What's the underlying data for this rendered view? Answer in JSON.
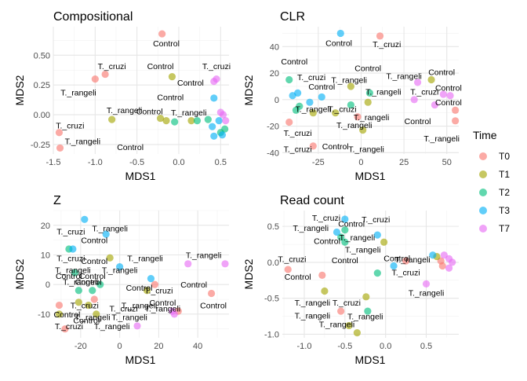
{
  "legend": {
    "title": "Time",
    "items": [
      {
        "label": "T0",
        "color": "#F8766D"
      },
      {
        "label": "T1",
        "color": "#A3A500"
      },
      {
        "label": "T2",
        "color": "#00BF7D"
      },
      {
        "label": "T3",
        "color": "#00B0F6"
      },
      {
        "label": "T7",
        "color": "#E76BF3"
      }
    ]
  },
  "chart_data": [
    {
      "type": "scatter",
      "title": "Compositional",
      "xlabel": "MDS1",
      "ylabel": "MDS2",
      "xlim": [
        -1.5,
        0.6
      ],
      "ylim": [
        -0.33,
        0.74
      ],
      "xticks": [
        -1.5,
        -1.0,
        -0.5,
        0.0,
        0.5
      ],
      "xticklabels": [
        "-1.5",
        "-1.0",
        "-0.5",
        "0.0",
        "0.5"
      ],
      "yticks": [
        -0.25,
        0,
        0.25,
        0.5
      ],
      "yticklabels": [
        "-0.25",
        "0.00",
        "0.25",
        "0.50"
      ],
      "points": [
        {
          "x": -0.2,
          "y": 0.68,
          "t": "T0"
        },
        {
          "x": -1.0,
          "y": 0.3,
          "t": "T0"
        },
        {
          "x": -0.88,
          "y": 0.34,
          "t": "T0"
        },
        {
          "x": -1.43,
          "y": -0.15,
          "t": "T0"
        },
        {
          "x": -1.42,
          "y": -0.28,
          "t": "T0"
        },
        {
          "x": -0.08,
          "y": 0.32,
          "t": "T1"
        },
        {
          "x": -0.8,
          "y": -0.04,
          "t": "T1"
        },
        {
          "x": -0.22,
          "y": -0.03,
          "t": "T1"
        },
        {
          "x": -0.15,
          "y": -0.05,
          "t": "T1"
        },
        {
          "x": 0.15,
          "y": -0.05,
          "t": "T1"
        },
        {
          "x": -0.05,
          "y": -0.06,
          "t": "T2"
        },
        {
          "x": 0.22,
          "y": -0.05,
          "t": "T2"
        },
        {
          "x": 0.35,
          "y": -0.04,
          "t": "T2"
        },
        {
          "x": 0.5,
          "y": -0.15,
          "t": "T2"
        },
        {
          "x": 0.55,
          "y": -0.12,
          "t": "T2"
        },
        {
          "x": 0.42,
          "y": 0.14,
          "t": "T3"
        },
        {
          "x": 0.4,
          "y": -0.1,
          "t": "T3"
        },
        {
          "x": 0.48,
          "y": -0.05,
          "t": "T3"
        },
        {
          "x": 0.52,
          "y": -0.17,
          "t": "T3"
        },
        {
          "x": 0.42,
          "y": -0.18,
          "t": "T3"
        },
        {
          "x": 0.42,
          "y": 0.28,
          "t": "T7"
        },
        {
          "x": 0.45,
          "y": 0.3,
          "t": "T7"
        },
        {
          "x": 0.53,
          "y": 0.0,
          "t": "T7"
        },
        {
          "x": 0.56,
          "y": -0.05,
          "t": "T7"
        },
        {
          "x": 0.5,
          "y": 0.02,
          "t": "T7"
        }
      ],
      "annotations": [
        {
          "text": "Control",
          "x": -0.15,
          "y": 0.6
        },
        {
          "text": "T._cruzi",
          "x": -0.8,
          "y": 0.41
        },
        {
          "text": "Control",
          "x": -0.22,
          "y": 0.41
        },
        {
          "text": "T._cruzi",
          "x": 0.45,
          "y": 0.41
        },
        {
          "text": "T._rangeli",
          "x": -1.2,
          "y": 0.19
        },
        {
          "text": "Control",
          "x": 0.14,
          "y": 0.27
        },
        {
          "text": "Control",
          "x": -0.1,
          "y": 0.15
        },
        {
          "text": "T._rangeli",
          "x": -0.65,
          "y": 0.04
        },
        {
          "text": "Control",
          "x": -0.35,
          "y": 0.03
        },
        {
          "text": "T._rangeli",
          "x": 0.12,
          "y": 0.02
        },
        {
          "text": "T._cruzi",
          "x": -1.3,
          "y": -0.09
        },
        {
          "text": "T._rangeli",
          "x": -1.15,
          "y": -0.22
        },
        {
          "text": "Control",
          "x": -0.58,
          "y": -0.27
        }
      ]
    },
    {
      "type": "scatter",
      "title": "CLR",
      "xlabel": "MDS1",
      "ylabel": "MDS2",
      "xlim": [
        -46,
        57
      ],
      "ylim": [
        -41,
        55
      ],
      "xticks": [
        -25,
        0,
        25,
        50
      ],
      "xticklabels": [
        "-25",
        "0",
        "25",
        "50"
      ],
      "yticks": [
        -40,
        -20,
        0,
        20,
        40
      ],
      "yticklabels": [
        "-40",
        "-20",
        "0",
        "20",
        "40"
      ],
      "points": [
        {
          "x": -28,
          "y": -35,
          "t": "T0"
        },
        {
          "x": -42,
          "y": -17,
          "t": "T0"
        },
        {
          "x": -2,
          "y": -13,
          "t": "T0"
        },
        {
          "x": 11,
          "y": 48,
          "t": "T0"
        },
        {
          "x": 55,
          "y": -8,
          "t": "T0"
        },
        {
          "x": 55,
          "y": -16,
          "t": "T0"
        },
        {
          "x": -28,
          "y": -10,
          "t": "T1"
        },
        {
          "x": -6,
          "y": 10,
          "t": "T1"
        },
        {
          "x": -15,
          "y": -10,
          "t": "T1"
        },
        {
          "x": 1,
          "y": -23,
          "t": "T1"
        },
        {
          "x": 41,
          "y": 15,
          "t": "T1"
        },
        {
          "x": 4,
          "y": -2,
          "t": "T1"
        },
        {
          "x": -42,
          "y": 15,
          "t": "T2"
        },
        {
          "x": -38,
          "y": -8,
          "t": "T2"
        },
        {
          "x": -36,
          "y": -5,
          "t": "T2"
        },
        {
          "x": -6,
          "y": -4,
          "t": "T2"
        },
        {
          "x": 5,
          "y": 5,
          "t": "T2"
        },
        {
          "x": -40,
          "y": 3,
          "t": "T3"
        },
        {
          "x": -37,
          "y": 5,
          "t": "T3"
        },
        {
          "x": -12,
          "y": 50,
          "t": "T3"
        },
        {
          "x": -23,
          "y": 2,
          "t": "T3"
        },
        {
          "x": -30,
          "y": -2,
          "t": "T3"
        },
        {
          "x": 33,
          "y": 13,
          "t": "T7"
        },
        {
          "x": 31,
          "y": 0,
          "t": "T7"
        },
        {
          "x": 48,
          "y": 4,
          "t": "T7"
        },
        {
          "x": 52,
          "y": 3,
          "t": "T7"
        },
        {
          "x": 43,
          "y": -4,
          "t": "T7"
        }
      ],
      "annotations": [
        {
          "text": "Control",
          "x": -13,
          "y": 43
        },
        {
          "text": "T._cruzi",
          "x": 15,
          "y": 42
        },
        {
          "text": "Control",
          "x": -39,
          "y": 29
        },
        {
          "text": "T._cruzi",
          "x": -29,
          "y": 17
        },
        {
          "text": "Control",
          "x": 4,
          "y": 24
        },
        {
          "text": "Control",
          "x": 47,
          "y": 21
        },
        {
          "text": "T._rangeli",
          "x": 25,
          "y": 18
        },
        {
          "text": "T._rangeli",
          "x": -7,
          "y": 15
        },
        {
          "text": "Control",
          "x": -23,
          "y": 10
        },
        {
          "text": "T._rangeli",
          "x": 13,
          "y": 6
        },
        {
          "text": "T._cruzi",
          "x": 37,
          "y": 6
        },
        {
          "text": "Control",
          "x": 51,
          "y": 9
        },
        {
          "text": "T._cruzi",
          "x": -11,
          "y": -7
        },
        {
          "text": "T._rangeli",
          "x": -28,
          "y": -7
        },
        {
          "text": "Control",
          "x": 51,
          "y": -2
        },
        {
          "text": "T._rangeli",
          "x": 6,
          "y": -13
        },
        {
          "text": "Control",
          "x": 33,
          "y": -16
        },
        {
          "text": "T._cruzi",
          "x": -37,
          "y": -25
        },
        {
          "text": "T._rangeli",
          "x": -4,
          "y": -19
        },
        {
          "text": "T._rangeli",
          "x": 47,
          "y": -29
        },
        {
          "text": "T._cruzi",
          "x": -37,
          "y": -37
        },
        {
          "text": "Control",
          "x": -15,
          "y": -35
        },
        {
          "text": "T._rangeli",
          "x": 3,
          "y": -37
        }
      ]
    },
    {
      "type": "scatter",
      "title": "Z",
      "xlabel": "MDS1",
      "ylabel": "MDS2",
      "xlim": [
        -34,
        56
      ],
      "ylim": [
        -18,
        25
      ],
      "xticks": [
        -20,
        0,
        20,
        40
      ],
      "xticklabels": [
        "-20",
        "0",
        "20",
        "40"
      ],
      "yticks": [
        -10,
        0,
        10,
        20
      ],
      "yticklabels": [
        "-10",
        "0",
        "10",
        "20"
      ],
      "points": [
        {
          "x": -31,
          "y": -7,
          "t": "T0"
        },
        {
          "x": -28,
          "y": -15,
          "t": "T0"
        },
        {
          "x": -13,
          "y": -5,
          "t": "T0"
        },
        {
          "x": 18,
          "y": 0,
          "t": "T0"
        },
        {
          "x": 47,
          "y": -3,
          "t": "T0"
        },
        {
          "x": 30,
          "y": -9,
          "t": "T0"
        },
        {
          "x": -31,
          "y": -10,
          "t": "T1"
        },
        {
          "x": -21,
          "y": -6,
          "t": "T1"
        },
        {
          "x": -16,
          "y": -7,
          "t": "T1"
        },
        {
          "x": -12,
          "y": -10,
          "t": "T1"
        },
        {
          "x": -5,
          "y": 9,
          "t": "T1"
        },
        {
          "x": 14,
          "y": -2,
          "t": "T1"
        },
        {
          "x": -26,
          "y": 12,
          "t": "T2"
        },
        {
          "x": -23,
          "y": 4,
          "t": "T2"
        },
        {
          "x": -21,
          "y": -2,
          "t": "T2"
        },
        {
          "x": -14,
          "y": -2,
          "t": "T2"
        },
        {
          "x": -10,
          "y": 0,
          "t": "T2"
        },
        {
          "x": -18,
          "y": 22,
          "t": "T3"
        },
        {
          "x": -24,
          "y": 12,
          "t": "T3"
        },
        {
          "x": -7,
          "y": 17,
          "t": "T3"
        },
        {
          "x": 0,
          "y": 6,
          "t": "T3"
        },
        {
          "x": 16,
          "y": 2,
          "t": "T3"
        },
        {
          "x": 35,
          "y": 7,
          "t": "T7"
        },
        {
          "x": 54,
          "y": 7,
          "t": "T7"
        },
        {
          "x": 9,
          "y": -14,
          "t": "T7"
        },
        {
          "x": 27,
          "y": -9,
          "t": "T7"
        },
        {
          "x": 28,
          "y": -10,
          "t": "T7"
        }
      ],
      "annotations": [
        {
          "text": "T._rangeli",
          "x": -5,
          "y": 19
        },
        {
          "text": "T._cruzi",
          "x": -25,
          "y": 18
        },
        {
          "text": "Control",
          "x": -13,
          "y": 15
        },
        {
          "text": "T._cruzi",
          "x": -25,
          "y": 9
        },
        {
          "text": "Control",
          "x": -13,
          "y": 8
        },
        {
          "text": "T._rangeli",
          "x": 13,
          "y": 9
        },
        {
          "text": "T._rangeli",
          "x": 43,
          "y": 10
        },
        {
          "text": "T._rangeli",
          "x": -24,
          "y": 5
        },
        {
          "text": "Control",
          "x": -26,
          "y": 3
        },
        {
          "text": "Control",
          "x": -14,
          "y": 3
        },
        {
          "text": "T._rangeli",
          "x": 0,
          "y": 5
        },
        {
          "text": "T._rangeli",
          "x": -20,
          "y": 1
        },
        {
          "text": "Control",
          "x": -16,
          "y": 1
        },
        {
          "text": "Control",
          "x": 10,
          "y": -1
        },
        {
          "text": "T._cruzi",
          "x": 20,
          "y": -2
        },
        {
          "text": "Control",
          "x": 38,
          "y": 0
        },
        {
          "text": "Control",
          "x": 22,
          "y": -6
        },
        {
          "text": "T._rangeli",
          "x": 10,
          "y": -7
        },
        {
          "text": "T._cruzi",
          "x": -18,
          "y": -7
        },
        {
          "text": "Control",
          "x": 48,
          "y": -7
        },
        {
          "text": "T._cruzi",
          "x": 2,
          "y": -8
        },
        {
          "text": "T._rangeli",
          "x": 22,
          "y": -8
        },
        {
          "text": "Control",
          "x": -27,
          "y": -10
        },
        {
          "text": "T._rangeli",
          "x": -14,
          "y": -11
        },
        {
          "text": "Control",
          "x": -17,
          "y": -12
        },
        {
          "text": "T._rangeli",
          "x": 5,
          "y": -11
        },
        {
          "text": "T._cruzi",
          "x": -26,
          "y": -14
        },
        {
          "text": "T._rangeli",
          "x": -4,
          "y": -14
        }
      ]
    },
    {
      "type": "scatter",
      "title": "Read count",
      "xlabel": "MDS1",
      "ylabel": "MDS2",
      "xlim": [
        -1.27,
        0.9
      ],
      "ylim": [
        -1.05,
        0.72
      ],
      "xticks": [
        -1.0,
        -0.5,
        0.0,
        0.5
      ],
      "xticklabels": [
        "-1.0",
        "-0.5",
        "0.0",
        "0.5"
      ],
      "yticks": [
        -1.0,
        -0.5,
        0.0,
        0.5
      ],
      "yticklabels": [
        "-1.0",
        "-0.5",
        "0.0",
        "0.5"
      ],
      "points": [
        {
          "x": -1.2,
          "y": -0.1,
          "t": "T0"
        },
        {
          "x": -0.78,
          "y": -0.18,
          "t": "T0"
        },
        {
          "x": -0.55,
          "y": -0.68,
          "t": "T0"
        },
        {
          "x": 0.25,
          "y": 0.02,
          "t": "T0"
        },
        {
          "x": 0.68,
          "y": 0.02,
          "t": "T0"
        },
        {
          "x": 0.7,
          "y": -0.05,
          "t": "T0"
        },
        {
          "x": -0.45,
          "y": -0.88,
          "t": "T1"
        },
        {
          "x": -0.35,
          "y": -0.98,
          "t": "T1"
        },
        {
          "x": -0.24,
          "y": -0.48,
          "t": "T1"
        },
        {
          "x": -0.75,
          "y": -0.4,
          "t": "T1"
        },
        {
          "x": -0.02,
          "y": 0.28,
          "t": "T1"
        },
        {
          "x": 0.63,
          "y": 0.08,
          "t": "T1"
        },
        {
          "x": -0.55,
          "y": 0.35,
          "t": "T2"
        },
        {
          "x": -0.5,
          "y": 0.28,
          "t": "T2"
        },
        {
          "x": -0.5,
          "y": 0.45,
          "t": "T2"
        },
        {
          "x": -0.22,
          "y": -0.68,
          "t": "T2"
        },
        {
          "x": -0.1,
          "y": -0.15,
          "t": "T2"
        },
        {
          "x": -0.5,
          "y": 0.6,
          "t": "T3"
        },
        {
          "x": -0.6,
          "y": 0.42,
          "t": "T3"
        },
        {
          "x": -0.1,
          "y": 0.38,
          "t": "T3"
        },
        {
          "x": 0.58,
          "y": 0.1,
          "t": "T3"
        },
        {
          "x": 0.1,
          "y": -0.05,
          "t": "T3"
        },
        {
          "x": 0.72,
          "y": 0.1,
          "t": "T7"
        },
        {
          "x": 0.78,
          "y": 0.05,
          "t": "T7"
        },
        {
          "x": 0.82,
          "y": 0.0,
          "t": "T7"
        },
        {
          "x": 0.5,
          "y": -0.3,
          "t": "T7"
        },
        {
          "x": 0.78,
          "y": -0.08,
          "t": "T7"
        }
      ],
      "annotations": [
        {
          "text": "T._cruzi",
          "x": -0.73,
          "y": 0.62
        },
        {
          "text": "T._cruzi",
          "x": -0.12,
          "y": 0.6
        },
        {
          "text": "Control",
          "x": -0.42,
          "y": 0.54
        },
        {
          "text": "T._rangeli",
          "x": -0.92,
          "y": 0.48
        },
        {
          "text": "T._rangeli",
          "x": -0.35,
          "y": 0.35
        },
        {
          "text": "Control",
          "x": -0.72,
          "y": 0.3
        },
        {
          "text": "T._rangeli",
          "x": -0.28,
          "y": 0.18
        },
        {
          "text": "T._cruzi",
          "x": -1.15,
          "y": 0.05
        },
        {
          "text": "Control",
          "x": -0.5,
          "y": 0.03
        },
        {
          "text": "Control",
          "x": 0.14,
          "y": 0.06
        },
        {
          "text": "T._rangeli",
          "x": 0.33,
          "y": 0.04
        },
        {
          "text": "T._cruzi",
          "x": 0.25,
          "y": -0.14
        },
        {
          "text": "Control",
          "x": -1.08,
          "y": -0.2
        },
        {
          "text": "T._rangeli",
          "x": 0.5,
          "y": -0.42
        },
        {
          "text": "T._rangeli",
          "x": -0.9,
          "y": -0.56
        },
        {
          "text": "T._cruzi",
          "x": -0.48,
          "y": -0.56
        },
        {
          "text": "T._rangeli",
          "x": -0.9,
          "y": -0.74
        },
        {
          "text": "T._rangeli",
          "x": -0.25,
          "y": -0.75
        },
        {
          "text": "T._rangeli",
          "x": -0.6,
          "y": -0.86
        }
      ]
    }
  ]
}
